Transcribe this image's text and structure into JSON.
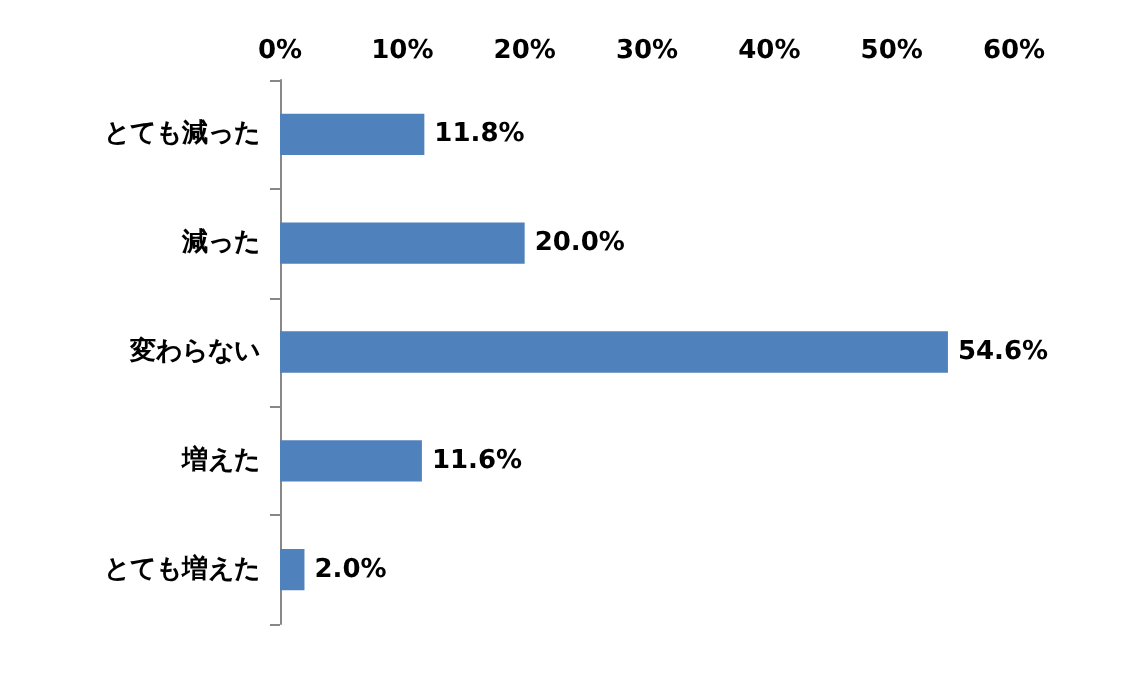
{
  "chart_data": {
    "type": "bar",
    "orientation": "horizontal",
    "categories": [
      "とても減った",
      "減った",
      "変わらない",
      "増えた",
      "とても増えた"
    ],
    "values": [
      11.8,
      20.0,
      54.6,
      11.6,
      2.0
    ],
    "value_labels": [
      "11.8%",
      "20.0%",
      "54.6%",
      "11.6%",
      "2.0%"
    ],
    "color": "#4f81bd",
    "xlim": [
      0,
      60
    ],
    "xticks": [
      {
        "value": 0,
        "label": "0%"
      },
      {
        "value": 10,
        "label": "10%"
      },
      {
        "value": 20,
        "label": "20%"
      },
      {
        "value": 30,
        "label": "30%"
      },
      {
        "value": 40,
        "label": "40%"
      },
      {
        "value": 50,
        "label": "50%"
      },
      {
        "value": 60,
        "label": "60%"
      }
    ],
    "grid": false
  }
}
